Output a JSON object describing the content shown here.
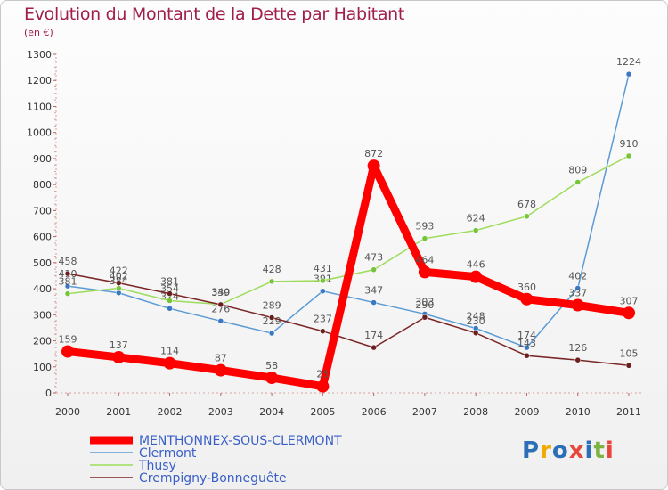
{
  "title": "Evolution du Montant de la Dette par Habitant",
  "subtitle": "(en €)",
  "logo": {
    "text": "Proxiti",
    "colors": [
      "#2c6fb7",
      "#f2a900",
      "#2c6fb7",
      "#e8463a",
      "#2c6fb7",
      "#7cb342",
      "#e8463a"
    ]
  },
  "chart_data": {
    "type": "line",
    "title": "Evolution du Montant de la Dette par Habitant",
    "subtitle": "(en €)",
    "xlabel": "",
    "ylabel": "",
    "x": [
      "2000",
      "2001",
      "2002",
      "2003",
      "2004",
      "2005",
      "2006",
      "2007",
      "2008",
      "2009",
      "2010",
      "2011"
    ],
    "ylim": [
      0,
      1300
    ],
    "yticks": [
      0,
      100,
      200,
      300,
      400,
      500,
      600,
      700,
      800,
      900,
      1000,
      1100,
      1200,
      1300
    ],
    "grid": false,
    "legend_position": "bottom-left",
    "series": [
      {
        "name": "MENTHONNEX-SOUS-CLERMONT",
        "color": "#ff0000",
        "values": [
          159,
          137,
          114,
          87,
          58,
          25,
          872,
          464,
          446,
          360,
          337,
          307
        ],
        "labels": [
          "159",
          "137",
          "114",
          "87",
          "58",
          "25",
          "872",
          "464",
          "446",
          "360",
          "337",
          "307"
        ],
        "emphasis": true
      },
      {
        "name": "Clermont",
        "color": "#5b9bd5",
        "values": [
          410,
          384,
          324,
          276,
          229,
          391,
          347,
          303,
          248,
          174,
          402,
          1224
        ],
        "labels": [
          "410",
          "384",
          "324",
          "276",
          "229",
          "391",
          "347",
          "303",
          "248",
          "174",
          "402",
          "1224"
        ]
      },
      {
        "name": "Thusy",
        "color": "#9ddc5a",
        "values": [
          381,
          402,
          354,
          340,
          428,
          431,
          473,
          593,
          624,
          678,
          809,
          910
        ],
        "labels": [
          "381",
          "402",
          "354",
          "340",
          "428",
          "431",
          "473",
          "593",
          "624",
          "678",
          "809",
          "910"
        ]
      },
      {
        "name": "Crempigny-Bonneguête",
        "color": "#7b2626",
        "values": [
          458,
          422,
          381,
          339,
          289,
          237,
          174,
          290,
          230,
          143,
          126,
          105
        ],
        "labels": [
          "458",
          "422",
          "381",
          "339",
          "289",
          "237",
          "174",
          "290",
          "230",
          "143",
          "126",
          "105"
        ]
      }
    ]
  }
}
